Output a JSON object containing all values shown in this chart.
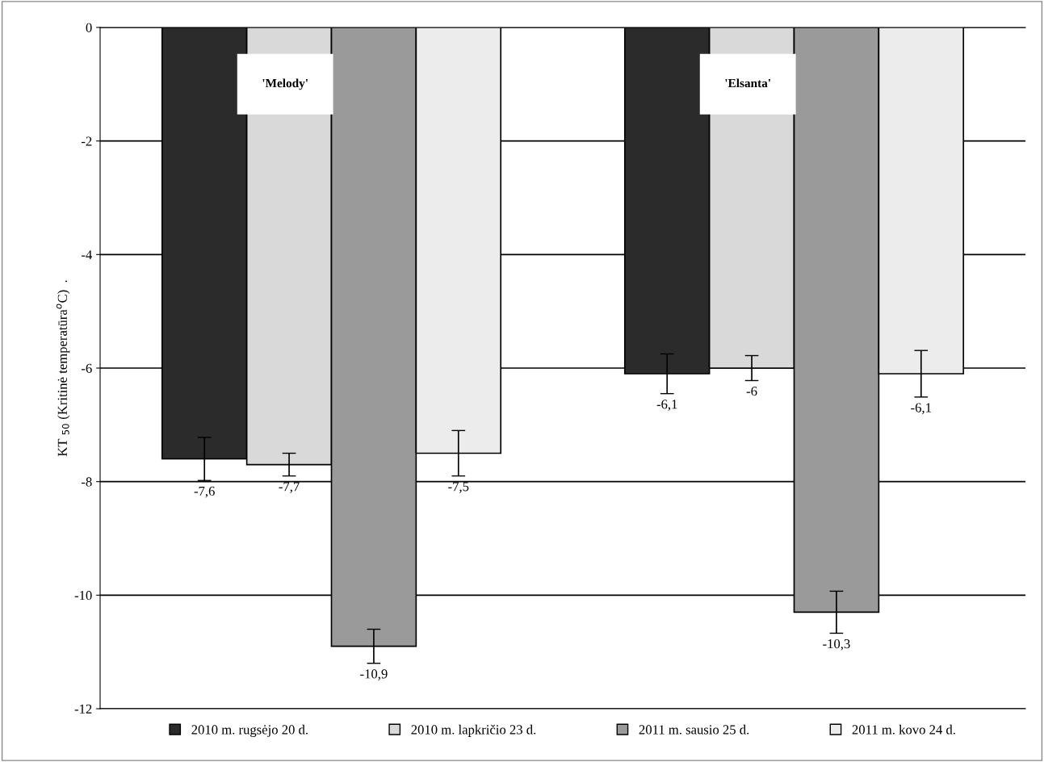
{
  "chart_data": {
    "type": "bar",
    "ylabel": "KT $_{50}$ (Kritinė temperatūra$^{o}$C)  .",
    "categories": [
      "'Melody'",
      "'Elsanta'"
    ],
    "series": [
      {
        "name": "2010 m. rugsėjo 20 d.",
        "color": "#2b2b2b",
        "values": [
          -7.6,
          -6.1
        ],
        "errors": [
          0.38,
          0.35
        ],
        "value_labels": [
          "-7,6",
          "-6,1"
        ]
      },
      {
        "name": "2010 m. lapkričio 23 d.",
        "color": "#d9d9d9",
        "values": [
          -7.7,
          -6.0
        ],
        "errors": [
          0.2,
          0.22
        ],
        "value_labels": [
          "-7,7",
          "-6"
        ]
      },
      {
        "name": "2011 m. sausio 25 d.",
        "color": "#9a9a9a",
        "values": [
          -10.9,
          -10.3
        ],
        "errors": [
          0.3,
          0.37
        ],
        "value_labels": [
          "-10,9",
          "-10,3"
        ]
      },
      {
        "name": "2011 m. kovo 24 d.",
        "color": "#ececec",
        "values": [
          -7.5,
          -6.1
        ],
        "errors": [
          0.4,
          0.41
        ],
        "value_labels": [
          "-7,5",
          "-6,1"
        ]
      }
    ],
    "ylim": [
      -12,
      0
    ],
    "yticks": [
      -12,
      -10,
      -8,
      -6,
      -4,
      -2,
      0
    ],
    "grid": "y",
    "legend": "bottom"
  }
}
